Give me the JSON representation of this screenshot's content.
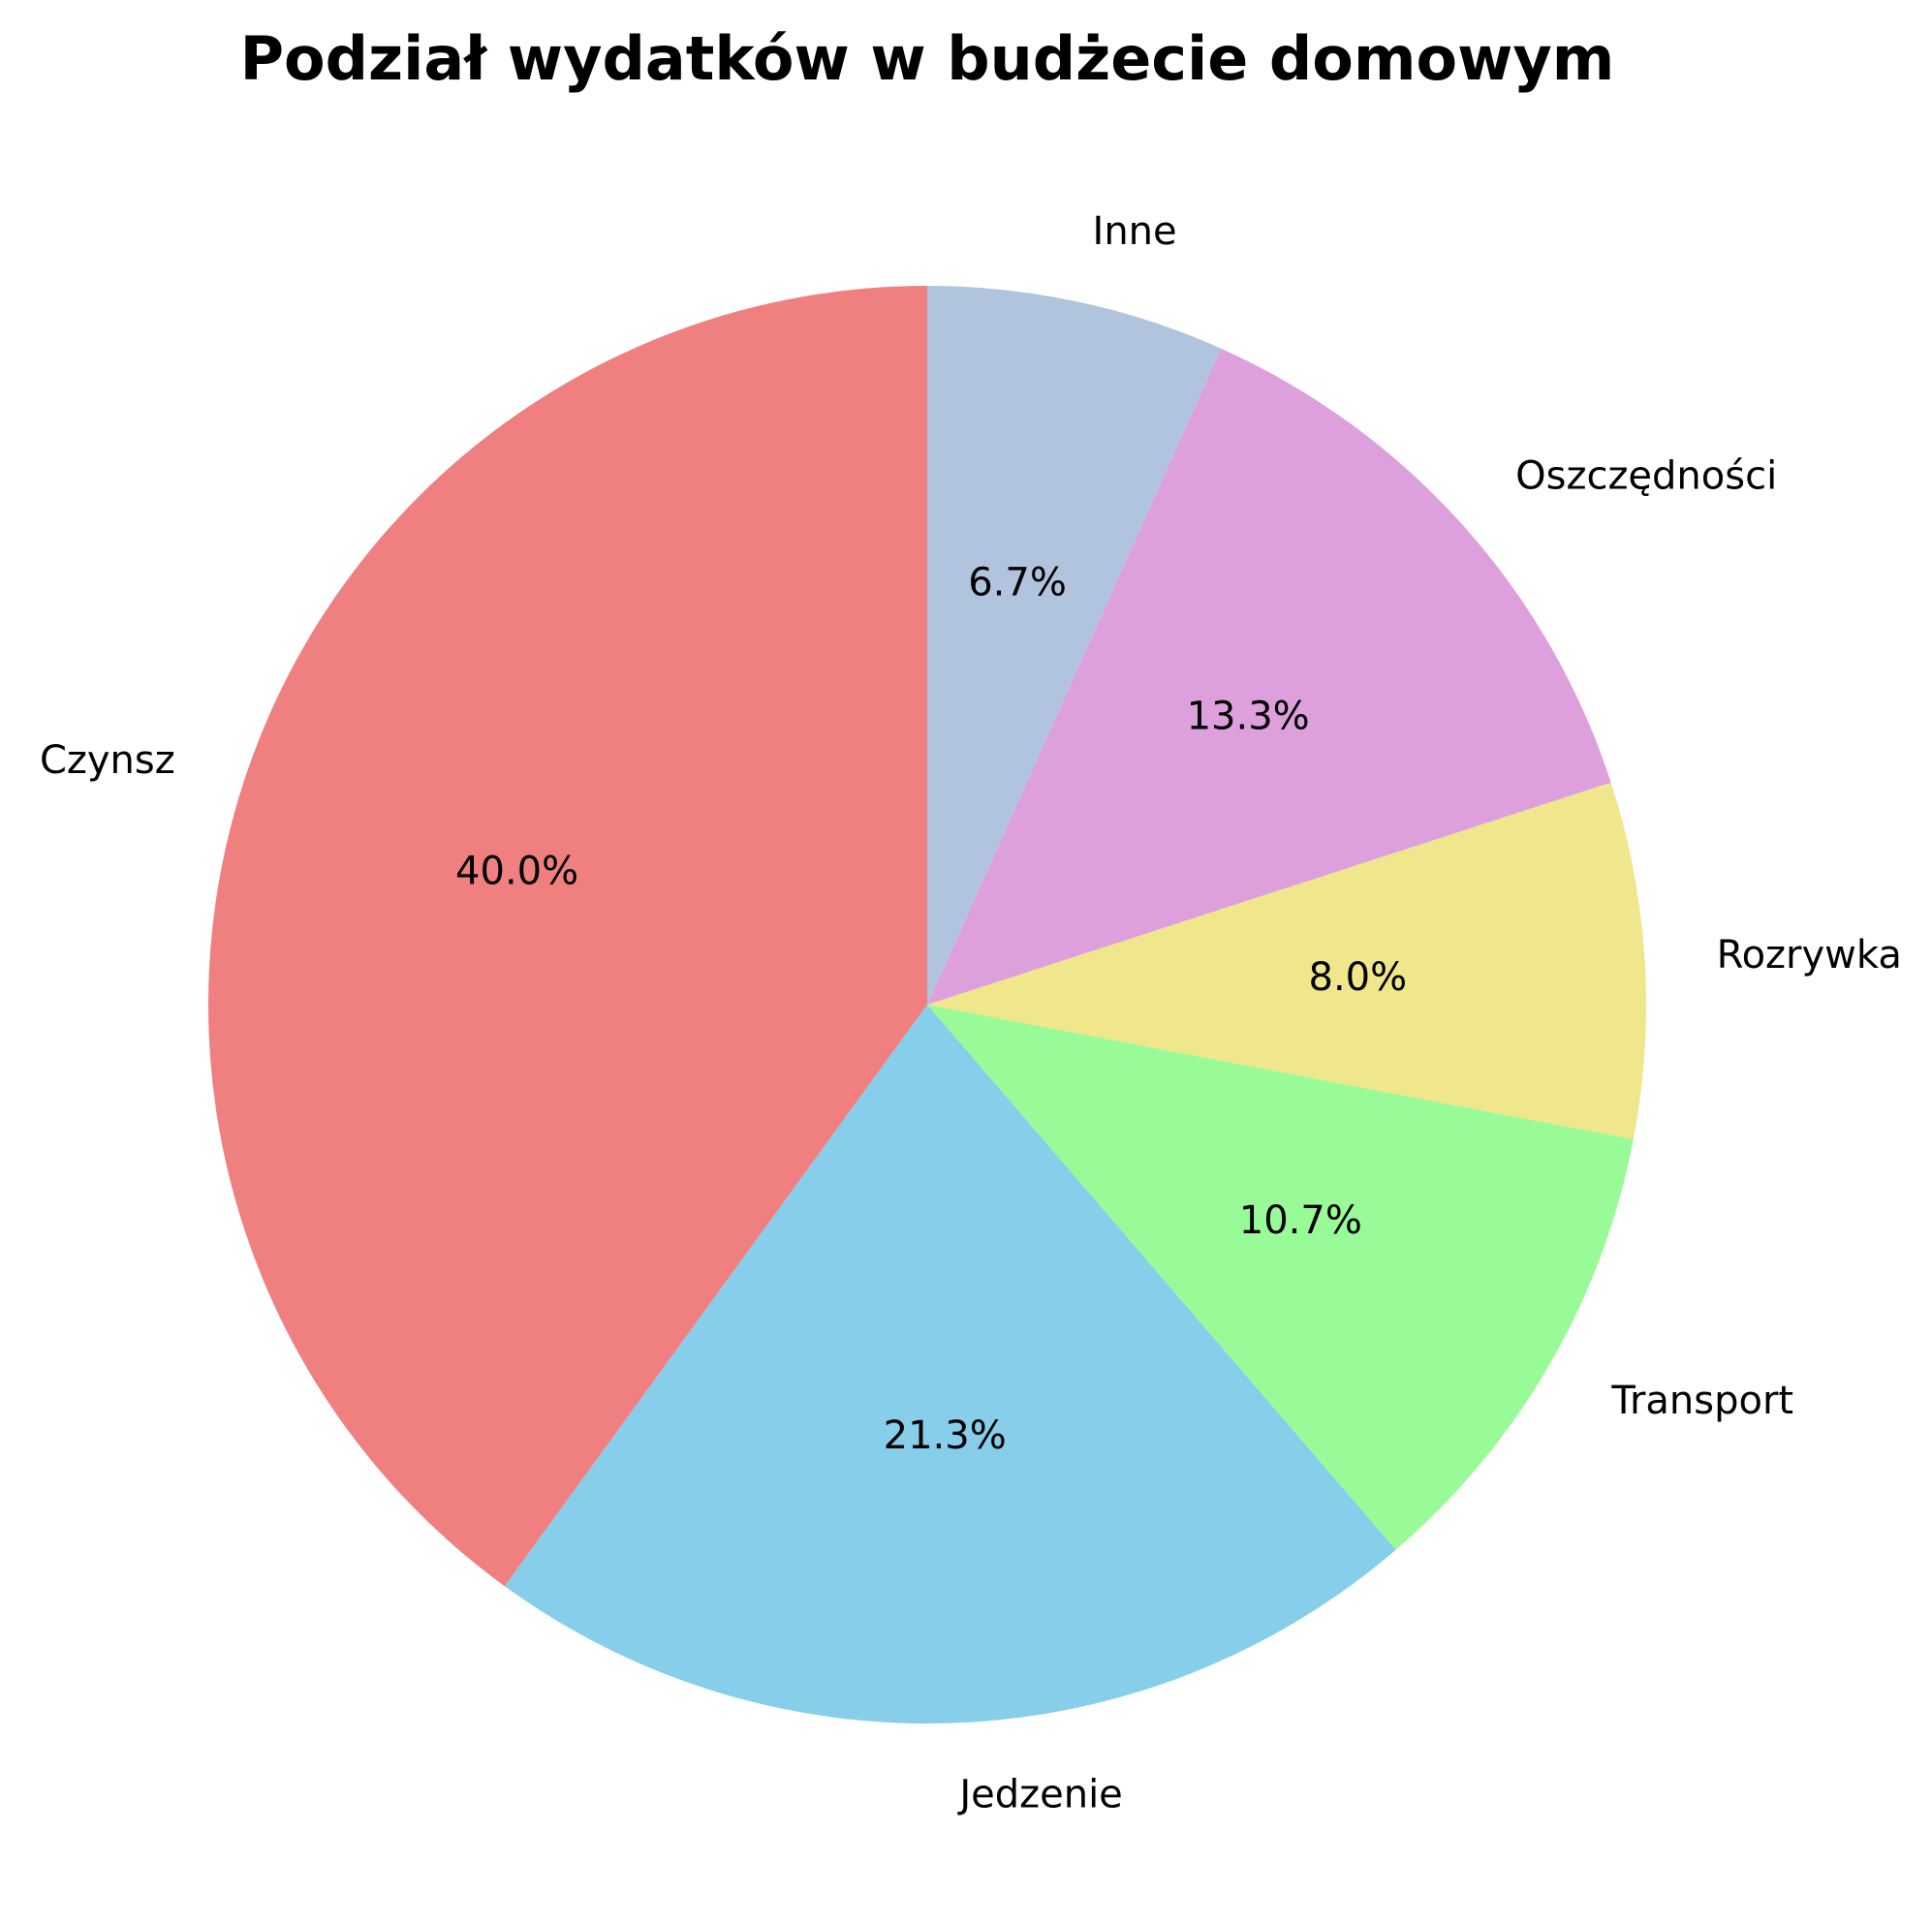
{
  "chart_data": {
    "type": "pie",
    "title": "Podział wydatków w budżecie domowym",
    "categories": [
      "Czynsz",
      "Jedzenie",
      "Transport",
      "Rozrywka",
      "Oszczędności",
      "Inne"
    ],
    "values": [
      40.0,
      21.3,
      10.7,
      8.0,
      13.3,
      6.7
    ],
    "value_labels": [
      "40.0%",
      "21.3%",
      "10.7%",
      "8.0%",
      "13.3%",
      "6.7%"
    ],
    "colors": [
      "#f08080",
      "#87ceeb",
      "#98fb98",
      "#f0e68c",
      "#dda0dd",
      "#b0c4de"
    ],
    "start_angle_deg": 90,
    "direction": "counterclockwise",
    "legend": "none"
  }
}
